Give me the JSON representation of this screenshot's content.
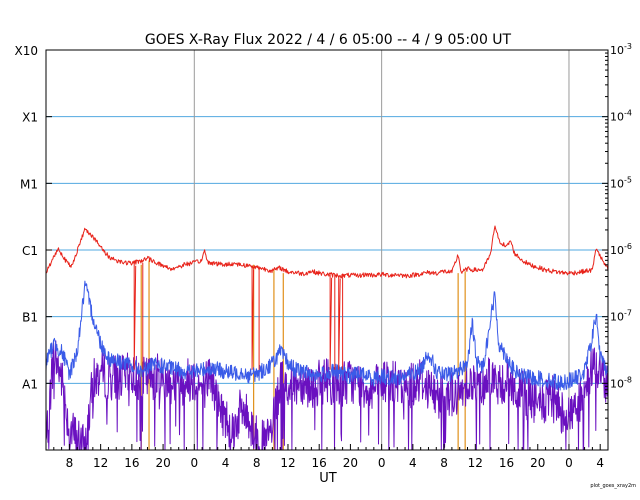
{
  "chart_data": {
    "type": "line",
    "title": "GOES X-Ray Flux   2022 /  4 /  6   05:00 --  4 /  9   05:00   UT",
    "xlabel": "UT",
    "ylabel": "",
    "y_scale": "log",
    "ylim": [
      1e-09,
      0.001
    ],
    "grid": true,
    "legend": "none",
    "x_tick_labels": [
      "8",
      "12",
      "16",
      "20",
      "0",
      "4",
      "8",
      "12",
      "16",
      "20",
      "0",
      "4",
      "8",
      "12",
      "16",
      "20",
      "0",
      "4"
    ],
    "x_tick_hours": [
      3,
      7,
      11,
      15,
      19,
      23,
      27,
      31,
      35,
      39,
      43,
      47,
      51,
      55,
      59,
      63,
      67,
      71
    ],
    "x_major_hours": [
      19,
      43,
      67
    ],
    "x_range_hours": [
      0,
      72
    ],
    "left_labels": [
      {
        "label": "X10",
        "value": 0.001
      },
      {
        "label": "X1",
        "value": 0.0001
      },
      {
        "label": "M1",
        "value": 1e-05
      },
      {
        "label": "C1",
        "value": 1e-06
      },
      {
        "label": "B1",
        "value": 1e-07
      },
      {
        "label": "A1",
        "value": 1e-08
      }
    ],
    "right_labels": [
      {
        "base": "10",
        "exp": "-3",
        "value": 0.001
      },
      {
        "base": "10",
        "exp": "-4",
        "value": 0.0001
      },
      {
        "base": "10",
        "exp": "-5",
        "value": 1e-05
      },
      {
        "base": "10",
        "exp": "-6",
        "value": 1e-06
      },
      {
        "base": "10",
        "exp": "-7",
        "value": 1e-07
      },
      {
        "base": "10",
        "exp": "-8",
        "value": 1e-08
      }
    ],
    "series": [
      {
        "key": "long",
        "color": "#e8231a",
        "points": [
          [
            0,
            4.5e-07
          ],
          [
            1,
            8e-07
          ],
          [
            1.6,
            1.05e-06
          ],
          [
            2.5,
            7e-07
          ],
          [
            3.2,
            5.5e-07
          ],
          [
            4.4,
            1.3e-06
          ],
          [
            5,
            2.1e-06
          ],
          [
            6,
            1.6e-06
          ],
          [
            7,
            1.1e-06
          ],
          [
            8,
            8e-07
          ],
          [
            9,
            7e-07
          ],
          [
            10,
            6.5e-07
          ],
          [
            11,
            6.3e-07
          ],
          [
            12,
            6.8e-07
          ],
          [
            13,
            7.5e-07
          ],
          [
            14,
            6.6e-07
          ],
          [
            15,
            5.8e-07
          ],
          [
            16,
            5.2e-07
          ],
          [
            17,
            5.6e-07
          ],
          [
            18,
            6.2e-07
          ],
          [
            19,
            6.4e-07
          ],
          [
            20,
            7e-07
          ],
          [
            20.3,
            1.05e-06
          ],
          [
            20.6,
            6.8e-07
          ],
          [
            21,
            6.5e-07
          ],
          [
            22,
            6.2e-07
          ],
          [
            23,
            6e-07
          ],
          [
            24,
            6.3e-07
          ],
          [
            25,
            6e-07
          ],
          [
            26,
            5.8e-07
          ],
          [
            27,
            5.5e-07
          ],
          [
            28,
            5.2e-07
          ],
          [
            29,
            4.9e-07
          ],
          [
            30,
            5.4e-07
          ],
          [
            31,
            4.7e-07
          ],
          [
            32,
            4.6e-07
          ],
          [
            33,
            4.4e-07
          ],
          [
            34,
            4.8e-07
          ],
          [
            35,
            4.5e-07
          ],
          [
            36,
            4.3e-07
          ],
          [
            37,
            4.2e-07
          ],
          [
            38,
            4.1e-07
          ],
          [
            39,
            4.2e-07
          ],
          [
            40,
            4.1e-07
          ],
          [
            41,
            4.3e-07
          ],
          [
            42,
            4.2e-07
          ],
          [
            43,
            4.3e-07
          ],
          [
            44,
            4.2e-07
          ],
          [
            45,
            4.3e-07
          ],
          [
            46,
            4.1e-07
          ],
          [
            47,
            4.2e-07
          ],
          [
            48,
            4.4e-07
          ],
          [
            49,
            4.6e-07
          ],
          [
            50,
            4.5e-07
          ],
          [
            51,
            4.8e-07
          ],
          [
            52,
            4.6e-07
          ],
          [
            52.8,
            8.5e-07
          ],
          [
            53.2,
            4.6e-07
          ],
          [
            54,
            5.2e-07
          ],
          [
            55,
            5e-07
          ],
          [
            56,
            5.1e-07
          ],
          [
            57,
            9e-07
          ],
          [
            57.5,
            2.4e-06
          ],
          [
            58,
            1.4e-06
          ],
          [
            59,
            1.1e-06
          ],
          [
            59.5,
            1.4e-06
          ],
          [
            60,
            9e-07
          ],
          [
            61,
            7e-07
          ],
          [
            62,
            6e-07
          ],
          [
            63,
            5.5e-07
          ],
          [
            64,
            5e-07
          ],
          [
            65,
            4.8e-07
          ],
          [
            66,
            4.6e-07
          ],
          [
            67,
            4.5e-07
          ],
          [
            68,
            4.6e-07
          ],
          [
            69,
            4.8e-07
          ],
          [
            70,
            5e-07
          ],
          [
            70.5,
            1.1e-06
          ],
          [
            71,
            8e-07
          ],
          [
            72,
            5e-07
          ]
        ],
        "drops": [
          [
            11.3,
            12.4
          ],
          [
            26.4,
            27.3
          ],
          [
            36.4,
            37.0
          ],
          [
            37.5,
            38.0
          ]
        ]
      },
      {
        "key": "short",
        "color": "#3a5be8",
        "points": [
          [
            0,
            2e-08
          ],
          [
            1,
            4e-08
          ],
          [
            2,
            3e-08
          ],
          [
            3,
            1.4e-08
          ],
          [
            4,
            3e-08
          ],
          [
            5,
            3e-07
          ],
          [
            6,
            1e-07
          ],
          [
            7,
            4e-08
          ],
          [
            8,
            2.4e-08
          ],
          [
            9,
            2.2e-08
          ],
          [
            10,
            2e-08
          ],
          [
            11,
            1.8e-08
          ],
          [
            12,
            1.6e-08
          ],
          [
            13,
            1.7e-08
          ],
          [
            14,
            1.9e-08
          ],
          [
            15,
            1.8e-08
          ],
          [
            16,
            1.7e-08
          ],
          [
            17,
            1.6e-08
          ],
          [
            18,
            1.5e-08
          ],
          [
            19,
            1.5e-08
          ],
          [
            20,
            1.6e-08
          ],
          [
            21,
            1.7e-08
          ],
          [
            22,
            1.6e-08
          ],
          [
            23,
            1.5e-08
          ],
          [
            24,
            1.4e-08
          ],
          [
            25,
            1.5e-08
          ],
          [
            26,
            1.3e-08
          ],
          [
            27,
            1.4e-08
          ],
          [
            28,
            1.6e-08
          ],
          [
            29,
            2e-08
          ],
          [
            30,
            3e-08
          ],
          [
            31,
            2e-08
          ],
          [
            32,
            1.6e-08
          ],
          [
            33,
            1.5e-08
          ],
          [
            34,
            1.4e-08
          ],
          [
            35,
            1.3e-08
          ],
          [
            36,
            1.4e-08
          ],
          [
            37,
            1.5e-08
          ],
          [
            38,
            1.4e-08
          ],
          [
            39,
            1.3e-08
          ],
          [
            40,
            1.4e-08
          ],
          [
            41,
            1.3e-08
          ],
          [
            42,
            1.2e-08
          ],
          [
            43,
            1.3e-08
          ],
          [
            44,
            1.2e-08
          ],
          [
            45,
            1.2e-08
          ],
          [
            46,
            1.3e-08
          ],
          [
            47,
            1.4e-08
          ],
          [
            48,
            1.6e-08
          ],
          [
            49,
            3e-08
          ],
          [
            50,
            1.5e-08
          ],
          [
            51,
            1.3e-08
          ],
          [
            52,
            1.4e-08
          ],
          [
            53,
            1.6e-08
          ],
          [
            54,
            2e-08
          ],
          [
            54.6,
            8e-08
          ],
          [
            55.2,
            2e-08
          ],
          [
            56,
            1.8e-08
          ],
          [
            57,
            1e-07
          ],
          [
            57.5,
            2.1e-07
          ],
          [
            58,
            4e-08
          ],
          [
            59,
            2.5e-08
          ],
          [
            60,
            1.5e-08
          ],
          [
            61,
            1.3e-08
          ],
          [
            62,
            1.2e-08
          ],
          [
            63,
            1.2e-08
          ],
          [
            64,
            1.1e-08
          ],
          [
            65,
            1.1e-08
          ],
          [
            66,
            1e-08
          ],
          [
            67,
            1.1e-08
          ],
          [
            68,
            1.2e-08
          ],
          [
            69,
            1.5e-08
          ],
          [
            70,
            5e-08
          ],
          [
            70.5,
            1.1e-07
          ],
          [
            71,
            2.5e-08
          ],
          [
            72,
            1.5e-08
          ]
        ]
      },
      {
        "key": "short-dip",
        "color": "#6a10c0",
        "points": [
          [
            0,
            1.2e-09
          ],
          [
            1,
            3e-08
          ],
          [
            2,
            1.2e-08
          ],
          [
            3,
            2e-09
          ],
          [
            4,
            1.5e-09
          ],
          [
            5,
            1e-09
          ],
          [
            6,
            1e-08
          ],
          [
            7,
            1.5e-08
          ],
          [
            8,
            1.2e-08
          ],
          [
            9,
            1.3e-08
          ],
          [
            10,
            1.2e-08
          ],
          [
            11,
            1.4e-08
          ],
          [
            12,
            1.1e-08
          ],
          [
            13,
            1.2e-08
          ],
          [
            14,
            1.3e-08
          ],
          [
            15,
            1.2e-08
          ],
          [
            16,
            1.1e-08
          ],
          [
            17,
            1e-08
          ],
          [
            18,
            1.1e-08
          ],
          [
            19,
            1.2e-08
          ],
          [
            20,
            8e-09
          ],
          [
            21,
            1.4e-08
          ],
          [
            22,
            5e-09
          ],
          [
            23,
            3e-09
          ],
          [
            24,
            2e-09
          ],
          [
            25,
            4e-09
          ],
          [
            26,
            3e-09
          ],
          [
            27,
            1.5e-09
          ],
          [
            28,
            1.2e-09
          ],
          [
            29,
            2e-09
          ],
          [
            30,
            1e-08
          ],
          [
            31,
            9e-09
          ],
          [
            32,
            1e-08
          ],
          [
            33,
            1.1e-08
          ],
          [
            34,
            9e-09
          ],
          [
            35,
            1e-08
          ],
          [
            36,
            1.2e-08
          ],
          [
            37,
            9e-09
          ],
          [
            38,
            1e-08
          ],
          [
            39,
            1.1e-08
          ],
          [
            40,
            1e-08
          ],
          [
            41,
            9e-09
          ],
          [
            42,
            8e-09
          ],
          [
            43,
            1e-08
          ],
          [
            44,
            1.1e-08
          ],
          [
            45,
            9e-09
          ],
          [
            46,
            8e-09
          ],
          [
            47,
            1e-08
          ],
          [
            48,
            1.2e-08
          ],
          [
            49,
            9e-09
          ],
          [
            50,
            6e-09
          ],
          [
            51,
            8e-09
          ],
          [
            52,
            7e-09
          ],
          [
            53,
            6e-09
          ],
          [
            54,
            1.2e-08
          ],
          [
            55,
            9e-09
          ],
          [
            56,
            1e-08
          ],
          [
            57,
            1.5e-08
          ],
          [
            58,
            8e-09
          ],
          [
            59,
            1.2e-08
          ],
          [
            60,
            8e-09
          ],
          [
            61,
            7e-09
          ],
          [
            62,
            6e-09
          ],
          [
            63,
            5e-09
          ],
          [
            64,
            5e-09
          ],
          [
            65,
            6e-09
          ],
          [
            66,
            4e-09
          ],
          [
            67,
            3e-09
          ],
          [
            68,
            5e-09
          ],
          [
            69,
            6e-09
          ],
          [
            70,
            2e-08
          ],
          [
            71,
            1.5e-08
          ],
          [
            72,
            9e-09
          ]
        ]
      },
      {
        "key": "long-dropouts",
        "color": "#e0901a",
        "segments": [
          [
            [
              12.2,
              6e-07
            ],
            [
              12.2,
              1e-09
            ]
          ],
          [
            [
              13.2,
              7e-07
            ],
            [
              13.2,
              1e-09
            ]
          ],
          [
            [
              26.6,
              6e-07
            ],
            [
              26.6,
              1e-09
            ]
          ],
          [
            [
              29.2,
              5e-07
            ],
            [
              29.2,
              1e-09
            ]
          ],
          [
            [
              30.4,
              4.5e-07
            ],
            [
              30.4,
              1e-09
            ]
          ],
          [
            [
              52.8,
              4.5e-07
            ],
            [
              52.8,
              1e-09
            ]
          ],
          [
            [
              53.7,
              4.8e-07
            ],
            [
              53.7,
              1e-09
            ]
          ]
        ]
      }
    ]
  },
  "footer": {
    "credit": "plot_goes_xray2m"
  }
}
